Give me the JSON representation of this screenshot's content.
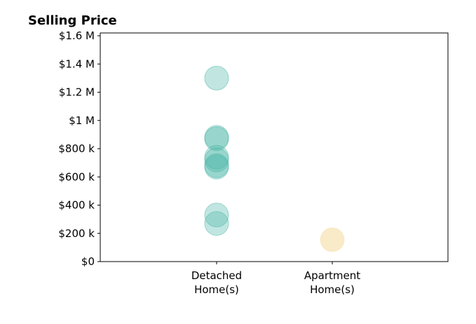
{
  "chart_data": {
    "type": "scatter",
    "title": "Selling Price",
    "xlabel": "",
    "ylabel": "",
    "categories": [
      [
        "Detached",
        "Home(s)"
      ],
      [
        "Apartment",
        "Home(s)"
      ]
    ],
    "y_ticks": [
      {
        "value": 0,
        "label": "$0"
      },
      {
        "value": 200000,
        "label": "$200 k"
      },
      {
        "value": 400000,
        "label": "$400 k"
      },
      {
        "value": 600000,
        "label": "$600 k"
      },
      {
        "value": 800000,
        "label": "$800 k"
      },
      {
        "value": 1000000,
        "label": "$1 M"
      },
      {
        "value": 1200000,
        "label": "$1.2 M"
      },
      {
        "value": 1400000,
        "label": "$1.4 M"
      },
      {
        "value": 1600000,
        "label": "$1.6 M"
      }
    ],
    "ylim": [
      0,
      1620000
    ],
    "grid": false,
    "series": [
      {
        "category": 0,
        "color": "#4db6a8",
        "values": [
          1300000,
          880000,
          870000,
          740000,
          720000,
          680000,
          670000,
          330000,
          270000
        ]
      },
      {
        "category": 1,
        "color": "#f7e1b0",
        "values": [
          155000
        ]
      }
    ]
  }
}
